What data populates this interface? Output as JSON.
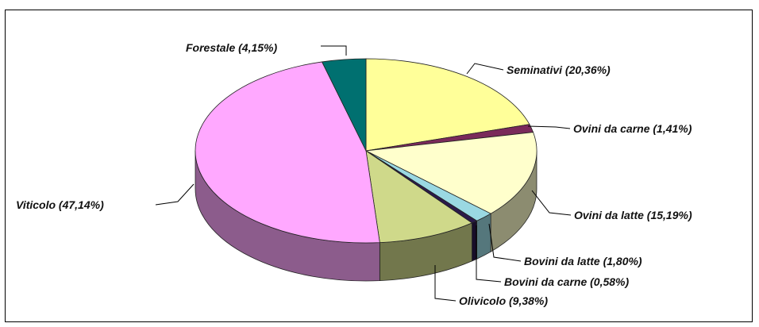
{
  "chart_data": {
    "type": "pie",
    "title": "",
    "labels": [
      "Seminativi (20,36%)",
      "Ovini da carne (1,41%)",
      "Ovini da latte (15,19%)",
      "Bovini da latte (1,80%)",
      "Bovini da carne (0,58%)",
      "Olivicolo (9,38%)",
      "Viticolo (47,14%)",
      "Forestale (4,15%)"
    ],
    "categories": [
      "Seminativi",
      "Ovini da carne",
      "Ovini da latte",
      "Bovini da latte",
      "Bovini da carne",
      "Olivicolo",
      "Viticolo",
      "Forestale"
    ],
    "values": [
      20.36,
      1.41,
      15.19,
      1.8,
      0.58,
      9.38,
      47.14,
      4.15
    ],
    "colors": [
      "#ffff99",
      "#7a2a5a",
      "#ffffcc",
      "#9ad8e2",
      "#2b1a4a",
      "#cfd98a",
      "#ffa8ff",
      "#007070"
    ],
    "legend": "none",
    "style": "3d-pie"
  }
}
